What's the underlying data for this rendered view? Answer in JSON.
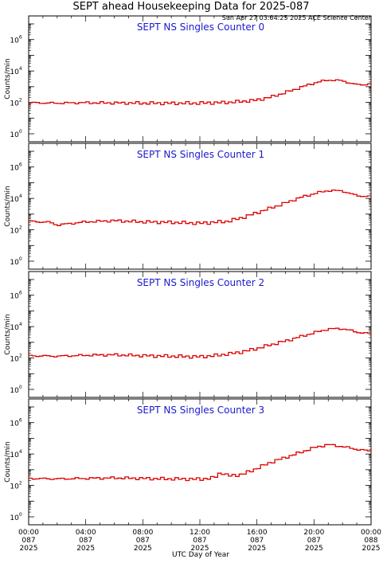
{
  "header": {
    "title": "SEPT ahead Housekeeping Data for 2025-087",
    "timestamp": "Sun Apr 27 03:04:25 2025 ACE Science Center"
  },
  "axis": {
    "xlabel": "UTC Day of Year",
    "ylabel": "Counts/min"
  },
  "colors": {
    "series": "#dd0000",
    "panel_title": "#1a1acc",
    "axis": "#000000"
  },
  "chart_data": [
    {
      "type": "line",
      "title": "SEPT NS Singles Counter 0",
      "yscale": "log",
      "ylim": [
        1,
        10000000
      ],
      "xlim": [
        0,
        24
      ],
      "y_ticks": [
        "10^0",
        "10^2",
        "10^4",
        "10^6"
      ],
      "x_ticks": [
        "00:00|087|2025",
        "04:00|087|2025",
        "08:00|087|2025",
        "12:00|087|2025",
        "16:00|087|2025",
        "20:00|087|2025",
        "00:00|088|2025"
      ],
      "x": [
        0,
        2,
        4,
        6,
        8,
        10,
        12,
        14,
        15,
        16,
        17,
        18,
        19,
        20,
        21,
        22,
        23,
        24
      ],
      "y": [
        95,
        90,
        95,
        92,
        90,
        88,
        90,
        100,
        115,
        140,
        220,
        420,
        850,
        1700,
        2700,
        2400,
        1300,
        1500
      ]
    },
    {
      "type": "line",
      "title": "SEPT NS Singles Counter 1",
      "yscale": "log",
      "ylim": [
        1,
        10000000
      ],
      "xlim": [
        0,
        24
      ],
      "y_ticks": [
        "10^0",
        "10^2",
        "10^4",
        "10^6"
      ],
      "x_ticks": [
        "00:00|087|2025",
        "04:00|087|2025",
        "08:00|087|2025",
        "12:00|087|2025",
        "16:00|087|2025",
        "20:00|087|2025",
        "00:00|088|2025"
      ],
      "x": [
        0,
        1.5,
        2,
        4,
        6,
        8,
        10,
        12,
        13,
        14,
        15,
        16,
        17,
        18,
        19,
        20,
        21,
        22,
        23,
        24
      ],
      "y": [
        350,
        300,
        200,
        320,
        380,
        320,
        300,
        260,
        300,
        350,
        600,
        1200,
        2500,
        5000,
        11000,
        20000,
        32000,
        30000,
        15000,
        13000
      ]
    },
    {
      "type": "line",
      "title": "SEPT NS Singles Counter 2",
      "yscale": "log",
      "ylim": [
        1,
        10000000
      ],
      "xlim": [
        0,
        24
      ],
      "y_ticks": [
        "10^0",
        "10^2",
        "10^4",
        "10^6"
      ],
      "x_ticks": [
        "00:00|087|2025",
        "04:00|087|2025",
        "08:00|087|2025",
        "12:00|087|2025",
        "16:00|087|2025",
        "20:00|087|2025",
        "00:00|088|2025"
      ],
      "x": [
        0,
        2,
        4,
        6,
        8,
        10,
        12,
        13,
        14,
        15,
        16,
        17,
        18,
        19,
        20,
        21,
        22,
        23,
        24
      ],
      "y": [
        140,
        130,
        150,
        160,
        140,
        130,
        120,
        140,
        180,
        250,
        400,
        700,
        1200,
        2200,
        4000,
        7000,
        7500,
        4500,
        3500
      ]
    },
    {
      "type": "line",
      "title": "SEPT NS Singles Counter 3",
      "yscale": "log",
      "ylim": [
        1,
        10000000
      ],
      "xlim": [
        0,
        24
      ],
      "y_ticks": [
        "10^0",
        "10^2",
        "10^4",
        "10^6"
      ],
      "x_ticks": [
        "00:00|087|2025",
        "04:00|087|2025",
        "08:00|087|2025",
        "12:00|087|2025",
        "16:00|087|2025",
        "20:00|087|2025",
        "00:00|088|2025"
      ],
      "x": [
        0,
        2,
        4,
        6,
        8,
        10,
        12,
        13,
        13.5,
        14,
        15,
        16,
        17,
        18,
        19,
        20,
        21,
        22,
        23,
        24
      ],
      "y": [
        280,
        260,
        280,
        300,
        280,
        260,
        250,
        300,
        700,
        400,
        500,
        1200,
        3000,
        6000,
        12000,
        25000,
        40000,
        30000,
        20000,
        15000
      ]
    }
  ]
}
